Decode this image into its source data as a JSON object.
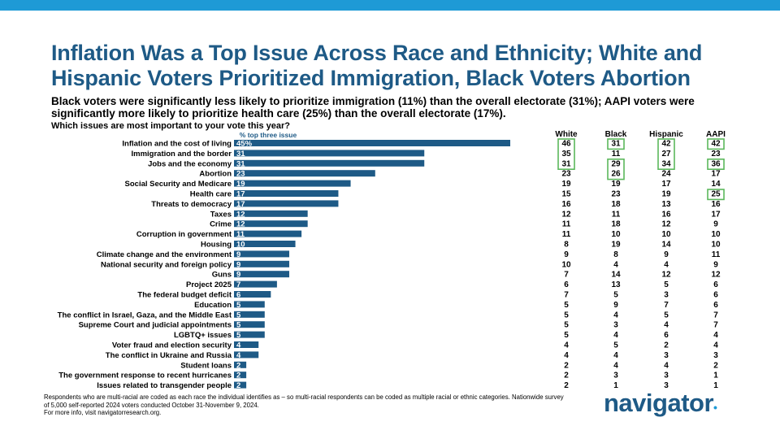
{
  "title": "Inflation Was a Top Issue Across Race and Ethnicity; White and Hispanic Voters Prioritized Immigration, Black Voters Abortion",
  "subtitle": "Black voters were significantly less likely to prioritize immigration (11%) than the overall electorate (31%); AAPI voters were significantly more likely to prioritize health care (25%) than the overall electorate (17%).",
  "question": "Which issues are most important to your vote this year?",
  "footnote": {
    "line1": "Respondents who are multi-racial are coded as each race the individual identifies as – so multi-racial respondents can be coded as multiple racial or ethnic categories. Nationwide survey of 5,000 self-reported 2024 voters conducted October 31-November 9, 2024.",
    "line2": "For more info, visit navigatorresearch.org."
  },
  "logo": {
    "text": "navigator",
    "dot": "•"
  },
  "colors": {
    "bar": "#1e5a86",
    "accent": "#1e9ad6",
    "highlight_box": "#5cb85c"
  },
  "chart_data": {
    "type": "bar",
    "orientation": "horizontal",
    "xlabel": "% top three issue",
    "xlim": [
      0,
      45
    ],
    "categories": [
      "Inflation and the cost of living",
      "Immigration and the border",
      "Jobs and the economy",
      "Abortion",
      "Social Security and Medicare",
      "Health care",
      "Threats to democracy",
      "Taxes",
      "Crime",
      "Corruption in government",
      "Housing",
      "Climate change and the environment",
      "National security and foreign policy",
      "Guns",
      "Project 2025",
      "The federal budget deficit",
      "Education",
      "The conflict in Israel, Gaza, and the Middle East",
      "Supreme Court and judicial appointments",
      "LGBTQ+ issues",
      "Voter fraud and election security",
      "The conflict in Ukraine and Russia",
      "Student loans",
      "The government response to recent hurricanes",
      "Issues related to transgender people"
    ],
    "values": [
      45,
      31,
      31,
      23,
      19,
      17,
      17,
      12,
      12,
      11,
      10,
      9,
      9,
      9,
      7,
      6,
      5,
      5,
      5,
      5,
      4,
      4,
      2,
      2,
      2
    ],
    "value_labels": [
      "45%",
      "31",
      "31",
      "23",
      "19",
      "17",
      "17",
      "12",
      "12",
      "11",
      "10",
      "9",
      "9",
      "9",
      "7",
      "6",
      "5",
      "5",
      "5",
      "5",
      "4",
      "4",
      "2",
      "2",
      "2"
    ],
    "table": {
      "columns": [
        "White",
        "Black",
        "Hispanic",
        "AAPI"
      ],
      "rows": [
        [
          46,
          31,
          42,
          42
        ],
        [
          35,
          11,
          27,
          23
        ],
        [
          31,
          29,
          34,
          36
        ],
        [
          23,
          26,
          24,
          17
        ],
        [
          19,
          19,
          17,
          14
        ],
        [
          15,
          23,
          19,
          25
        ],
        [
          16,
          18,
          13,
          16
        ],
        [
          12,
          11,
          16,
          17
        ],
        [
          11,
          18,
          12,
          9
        ],
        [
          11,
          10,
          10,
          10
        ],
        [
          8,
          19,
          14,
          10
        ],
        [
          9,
          8,
          9,
          11
        ],
        [
          10,
          4,
          4,
          9
        ],
        [
          7,
          14,
          12,
          12
        ],
        [
          6,
          13,
          5,
          6
        ],
        [
          7,
          5,
          3,
          6
        ],
        [
          5,
          9,
          7,
          6
        ],
        [
          5,
          4,
          5,
          7
        ],
        [
          5,
          3,
          4,
          7
        ],
        [
          5,
          4,
          6,
          4
        ],
        [
          4,
          5,
          2,
          4
        ],
        [
          4,
          4,
          3,
          3
        ],
        [
          2,
          4,
          4,
          2
        ],
        [
          2,
          3,
          3,
          1
        ],
        [
          2,
          1,
          3,
          1
        ]
      ],
      "highlights": [
        {
          "column": "White",
          "rows": [
            0,
            2
          ],
          "label": "White 46/35/31 box"
        },
        {
          "column": "Black",
          "rows": [
            0,
            0
          ],
          "label": "Black 31 box"
        },
        {
          "column": "Black",
          "rows": [
            2,
            3
          ],
          "label": "Black 29/26 box"
        },
        {
          "column": "Hispanic",
          "rows": [
            0,
            2
          ],
          "label": "Hispanic 42/27/34 box"
        },
        {
          "column": "AAPI",
          "rows": [
            0,
            0
          ],
          "label": "AAPI 42 box"
        },
        {
          "column": "AAPI",
          "rows": [
            2,
            2
          ],
          "label": "AAPI 36 box"
        },
        {
          "column": "AAPI",
          "rows": [
            5,
            5
          ],
          "label": "AAPI 25 box"
        }
      ]
    }
  }
}
